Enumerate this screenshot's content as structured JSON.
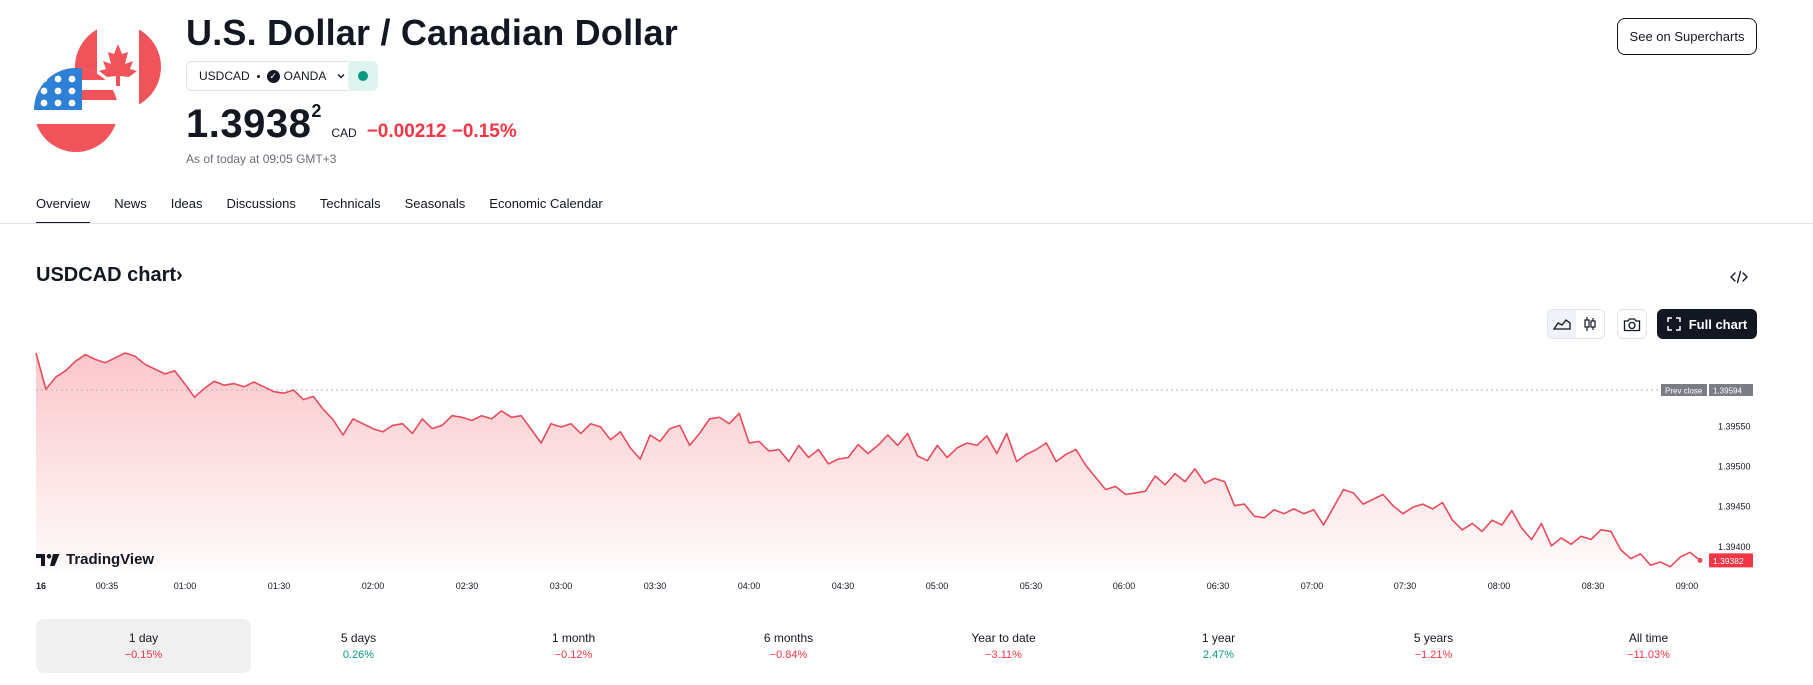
{
  "header": {
    "title": "U.S. Dollar / Canadian Dollar",
    "symbol": "USDCAD",
    "broker": "OANDA",
    "broker_logo_glyph": "✓",
    "price_main": "1.3938",
    "price_sup": "2",
    "currency": "CAD",
    "change": "−0.00212 −0.15%",
    "as_of": "As of today at 09:05 GMT+3",
    "market_status": "open",
    "supercharts_label": "See on Supercharts"
  },
  "tabs": [
    "Overview",
    "News",
    "Ideas",
    "Discussions",
    "Technicals",
    "Seasonals",
    "Economic Calendar"
  ],
  "active_tab": "Overview",
  "chart_section": {
    "title": "USDCAD chart›",
    "full_chart_label": "Full chart",
    "brand": "TradingView",
    "prev_close_label": "Prev close",
    "prev_close_value": "1.39594",
    "last_value_label": "1.39382"
  },
  "periods": [
    {
      "label": "1 day",
      "value": "−0.15%",
      "direction": "down",
      "active": true
    },
    {
      "label": "5 days",
      "value": "0.26%",
      "direction": "up",
      "active": false
    },
    {
      "label": "1 month",
      "value": "−0.12%",
      "direction": "down",
      "active": false
    },
    {
      "label": "6 months",
      "value": "−0.84%",
      "direction": "down",
      "active": false
    },
    {
      "label": "Year to date",
      "value": "−3.11%",
      "direction": "down",
      "active": false
    },
    {
      "label": "1 year",
      "value": "2.47%",
      "direction": "up",
      "active": false
    },
    {
      "label": "5 years",
      "value": "−1.21%",
      "direction": "down",
      "active": false
    },
    {
      "label": "All time",
      "value": "−11.03%",
      "direction": "down",
      "active": false
    }
  ],
  "colors": {
    "down": "#f23645",
    "up": "#089981",
    "line": "#e84c5a",
    "dark": "#131722"
  },
  "chart_data": {
    "type": "area",
    "x_ticks": [
      "16",
      "00:35",
      "01:00",
      "01:30",
      "02:00",
      "02:30",
      "03:00",
      "03:30",
      "04:00",
      "04:30",
      "05:00",
      "05:30",
      "06:00",
      "06:30",
      "07:00",
      "07:30",
      "08:00",
      "08:30",
      "09:00"
    ],
    "y_ticks": [
      "1.39550",
      "1.39500",
      "1.39450",
      "1.39400"
    ],
    "y_range": [
      1.3937,
      1.3965
    ],
    "prev_close": 1.39594,
    "last": 1.39382,
    "series": [
      {
        "values": [
          1.3964,
          1.39595,
          1.3961,
          1.39618,
          1.3963,
          1.39638,
          1.39632,
          1.39628,
          1.39634,
          1.3964,
          1.39636,
          1.39626,
          1.3962,
          1.39614,
          1.39618,
          1.39602,
          1.39585,
          1.39596,
          1.39605,
          1.396,
          1.39602,
          1.39598,
          1.39604,
          1.39598,
          1.39592,
          1.3959,
          1.39594,
          1.39582,
          1.39586,
          1.3957,
          1.39557,
          1.39538,
          1.39558,
          1.39552,
          1.39546,
          1.39542,
          1.3955,
          1.39552,
          1.3954,
          1.39558,
          1.39546,
          1.3955,
          1.39562,
          1.3956,
          1.39556,
          1.39562,
          1.39558,
          1.39568,
          1.3956,
          1.39562,
          1.39545,
          1.39528,
          1.39552,
          1.39548,
          1.39552,
          1.3954,
          1.39552,
          1.39548,
          1.39532,
          1.39542,
          1.39522,
          1.39508,
          1.39538,
          1.3953,
          1.39546,
          1.3955,
          1.39525,
          1.3954,
          1.39558,
          1.3956,
          1.39552,
          1.39565,
          1.39528,
          1.3953,
          1.39518,
          1.3952,
          1.39505,
          1.39525,
          1.3951,
          1.3952,
          1.39502,
          1.39508,
          1.3951,
          1.39526,
          1.39515,
          1.39525,
          1.39538,
          1.39525,
          1.3954,
          1.39512,
          1.39506,
          1.39525,
          1.3951,
          1.39522,
          1.39528,
          1.39525,
          1.39537,
          1.39515,
          1.3954,
          1.39505,
          1.39514,
          1.3952,
          1.39528,
          1.39505,
          1.39514,
          1.3952,
          1.395,
          1.39485,
          1.3947,
          1.39474,
          1.39464,
          1.39466,
          1.39468,
          1.39487,
          1.39476,
          1.3949,
          1.3948,
          1.39496,
          1.39478,
          1.39484,
          1.3948,
          1.3945,
          1.39452,
          1.39437,
          1.39435,
          1.39445,
          1.3944,
          1.39446,
          1.3944,
          1.39445,
          1.39426,
          1.39448,
          1.3947,
          1.39466,
          1.39452,
          1.39458,
          1.39464,
          1.3945,
          1.3944,
          1.39448,
          1.39452,
          1.39446,
          1.39454,
          1.39432,
          1.3942,
          1.39428,
          1.39418,
          1.39432,
          1.39426,
          1.39444,
          1.39422,
          1.39408,
          1.39428,
          1.394,
          1.3941,
          1.39402,
          1.39412,
          1.39408,
          1.3942,
          1.39418,
          1.39395,
          1.39384,
          1.3939,
          1.39376,
          1.3938,
          1.39374,
          1.39386,
          1.39392,
          1.39382
        ]
      }
    ]
  }
}
